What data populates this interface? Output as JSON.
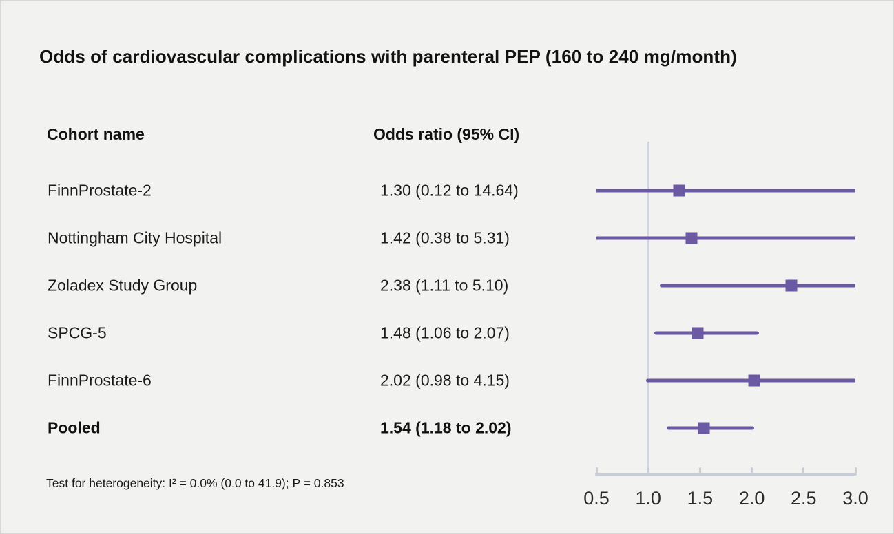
{
  "title": "Odds of cardiovascular complications with parenteral PEP (160 to 240 mg/month)",
  "table": {
    "cohort_header": "Cohort name",
    "or_header": "Odds ratio (95% CI)"
  },
  "footnote": "Test for heterogeneity: I² = 0.0% (0.0 to 41.9); P = 0.853",
  "colors": {
    "accent": "#6b59a4",
    "axis": "#c9cdd7",
    "reference_line": "#d2d5de",
    "background": "#f2f2f1",
    "text": "#1b1b1b"
  },
  "chart_data": {
    "type": "forest",
    "title": "Odds of cardiovascular complications with parenteral PEP (160 to 240 mg/month)",
    "columns": [
      "Cohort name",
      "Odds ratio (95% CI)"
    ],
    "rows": [
      {
        "label": "FinnProstate-2",
        "or_text": "1.30 (0.12 to 14.64)",
        "or": 1.3,
        "ci_low": 0.12,
        "ci_high": 14.64,
        "bold": false
      },
      {
        "label": "Nottingham City Hospital",
        "or_text": "1.42 (0.38 to 5.31)",
        "or": 1.42,
        "ci_low": 0.38,
        "ci_high": 5.31,
        "bold": false
      },
      {
        "label": "Zoladex Study Group",
        "or_text": "2.38 (1.11 to 5.10)",
        "or": 2.38,
        "ci_low": 1.11,
        "ci_high": 5.1,
        "bold": false
      },
      {
        "label": "SPCG-5",
        "or_text": "1.48 (1.06 to 2.07)",
        "or": 1.48,
        "ci_low": 1.06,
        "ci_high": 2.07,
        "bold": false
      },
      {
        "label": "FinnProstate-6",
        "or_text": "2.02 (0.98 to 4.15)",
        "or": 2.02,
        "ci_low": 0.98,
        "ci_high": 4.15,
        "bold": false
      },
      {
        "label": "Pooled",
        "or_text": "1.54 (1.18 to 2.02)",
        "or": 1.54,
        "ci_low": 1.18,
        "ci_high": 2.02,
        "bold": true
      }
    ],
    "axis": {
      "min": 0.5,
      "max": 3.0,
      "ticks": [
        0.5,
        1.0,
        1.5,
        2.0,
        2.5,
        3.0
      ],
      "tick_labels": [
        "0.5",
        "1.0",
        "1.5",
        "2.0",
        "2.5",
        "3.0"
      ],
      "reference_value": 1.0,
      "scale": "linear",
      "grid": false,
      "legend": "none",
      "marker": "square",
      "footnote": "Test for heterogeneity: I² = 0.0% (0.0 to 41.9); P = 0.853"
    }
  }
}
